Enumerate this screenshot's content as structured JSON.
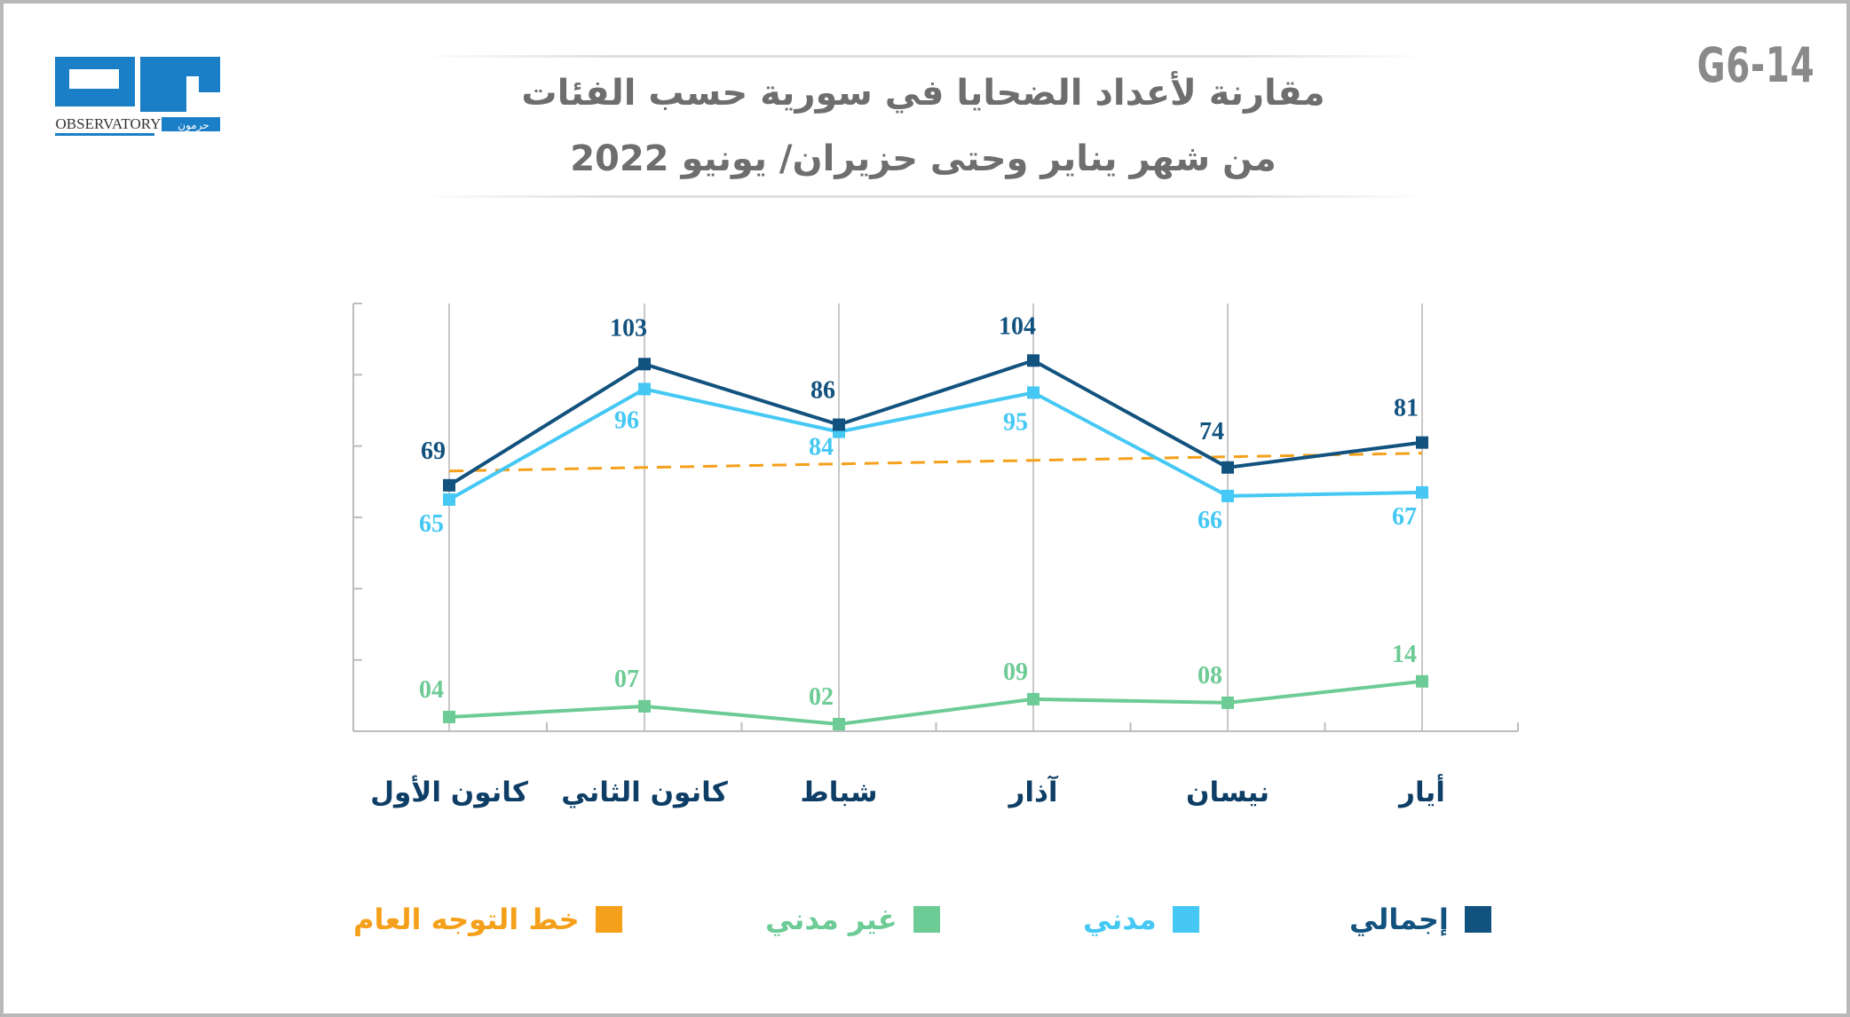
{
  "code": "G6-14",
  "logo": {
    "arabic": "مرصد",
    "english": "OBSERVATORY",
    "sub": "حرمون"
  },
  "title": {
    "line1": "مقارنة لأعداد الضحايا في سورية حسب الفئات",
    "line2": "من شهر يناير وحتى حزيران/ يونيو 2022"
  },
  "colors": {
    "total": "#12527e",
    "civil": "#45c8f4",
    "noncivil": "#6dcb95",
    "trend": "#f5a01a"
  },
  "chart_data": {
    "type": "line",
    "categories": [
      "كانون الأول",
      "كانون الثاني",
      "شباط",
      "آذار",
      "نيسان",
      "أيار"
    ],
    "series": [
      {
        "name": "إجمالي",
        "values": [
          69,
          103,
          86,
          104,
          74,
          81
        ],
        "labels": [
          "69",
          "103",
          "86",
          "104",
          "74",
          "81"
        ]
      },
      {
        "name": "مدني",
        "values": [
          65,
          96,
          84,
          95,
          66,
          67
        ],
        "labels": [
          "65",
          "96",
          "84",
          "95",
          "66",
          "67"
        ]
      },
      {
        "name": "غير مدني",
        "values": [
          4,
          7,
          2,
          9,
          8,
          14
        ],
        "labels": [
          "04",
          "07",
          "02",
          "09",
          "08",
          "14"
        ]
      },
      {
        "name": "خط التوجه العام",
        "values": [
          73,
          74,
          75,
          76,
          77,
          78
        ]
      }
    ],
    "ylim": [
      0,
      120
    ],
    "grid": "vertical",
    "legend_position": "bottom"
  }
}
